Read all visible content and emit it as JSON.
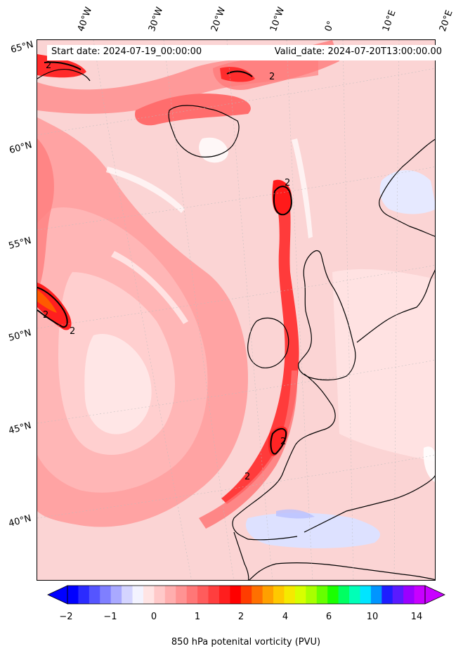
{
  "header": {
    "start_date": "Start date: 2024-07-19_00:00:00",
    "valid_date": "Valid_date: 2024-07-20T13:00:00.00"
  },
  "axes": {
    "longitude_labels": [
      "40°W",
      "30°W",
      "20°W",
      "10°W",
      "0°",
      "10°E",
      "20°E"
    ],
    "latitude_labels": [
      "65°N",
      "60°N",
      "55°N",
      "50°N",
      "45°N",
      "40°N"
    ]
  },
  "contour_label": "2",
  "colorbar": {
    "label": "850 hPa potenital vorticity (PVU)",
    "tick_labels": [
      "−2",
      "−1",
      "0",
      "1",
      "2",
      "4",
      "6",
      "10",
      "14"
    ],
    "colors": [
      "#0000ff",
      "#2b2bff",
      "#5555ff",
      "#7f7fff",
      "#a9a9ff",
      "#d4d4ff",
      "#f3f3ff",
      "#ffe4e4",
      "#ffc9c9",
      "#ffaeae",
      "#ff9393",
      "#ff7777",
      "#ff5c5c",
      "#ff3e3e",
      "#ff1e1e",
      "#ff0000",
      "#ff3c00",
      "#ff7000",
      "#ffa000",
      "#ffc800",
      "#f5e900",
      "#d7ff00",
      "#a8ff00",
      "#66ff00",
      "#1aff00",
      "#00ff62",
      "#00ffb7",
      "#00e5ff",
      "#0095ff",
      "#1e1eff",
      "#5a1aff",
      "#9b00ff",
      "#c800ff"
    ]
  },
  "palette": {
    "ocean_base": "#fde3e3",
    "light_pink": "#ffc9c9",
    "medium_red": "#ff8f8f",
    "strong_red": "#ff4d4d",
    "bright_red": "#ff1f1f",
    "white_patch": "#ffffff",
    "light_blue": "#e0e4ff",
    "blue": "#aab0ff"
  }
}
